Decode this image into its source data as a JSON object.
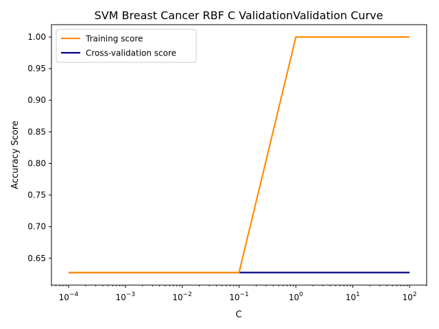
{
  "chart_data": {
    "type": "line",
    "title": "SVM Breast Cancer RBF C ValidationValidation Curve",
    "xlabel": "C",
    "ylabel": "Accuracy Score",
    "xscale": "log",
    "xlim": [
      5e-05,
      200
    ],
    "ylim": [
      0.6075,
      1.0195
    ],
    "x": [
      0.0001,
      0.001,
      0.01,
      0.1,
      1,
      10,
      100
    ],
    "x_ticks": [
      {
        "value": 0.0001,
        "base": "10",
        "exp": "−4"
      },
      {
        "value": 0.001,
        "base": "10",
        "exp": "−3"
      },
      {
        "value": 0.01,
        "base": "10",
        "exp": "−2"
      },
      {
        "value": 0.1,
        "base": "10",
        "exp": "−1"
      },
      {
        "value": 1,
        "base": "10",
        "exp": "0"
      },
      {
        "value": 10,
        "base": "10",
        "exp": "1"
      },
      {
        "value": 100,
        "base": "10",
        "exp": "2"
      }
    ],
    "y_ticks": [
      "0.65",
      "0.70",
      "0.75",
      "0.80",
      "0.85",
      "0.90",
      "0.95",
      "1.00"
    ],
    "legend_position": "top-left",
    "grid": false,
    "series": [
      {
        "name": "Training score",
        "color": "#ff8c00",
        "values": [
          0.6274,
          0.6274,
          0.6274,
          0.6274,
          1.0,
          1.0,
          1.0
        ]
      },
      {
        "name": "Cross-validation score",
        "color": "#000080",
        "values": [
          0.6274,
          0.6274,
          0.6274,
          0.6274,
          0.6274,
          0.6274,
          0.6274
        ]
      }
    ]
  }
}
